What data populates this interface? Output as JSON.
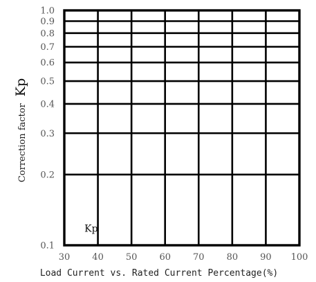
{
  "chart_data": {
    "type": "line",
    "title": "",
    "xlabel": "Load Current vs. Rated Current Percentage(%)",
    "ylabel_prefix": "Correction factor",
    "ylabel_symbol": "Kp",
    "xlim": [
      30,
      100
    ],
    "ylim": [
      0.1,
      1.0
    ],
    "yscale": "log",
    "grid": true,
    "xticks": [
      30,
      40,
      50,
      60,
      70,
      80,
      90,
      100
    ],
    "yticks": [
      0.1,
      0.2,
      0.3,
      0.4,
      0.5,
      0.6,
      0.7,
      0.8,
      0.9,
      1.0
    ],
    "xtick_labels": [
      "30",
      "40",
      "50",
      "60",
      "70",
      "80",
      "90",
      "100"
    ],
    "ytick_labels": [
      "0.1",
      "0.2",
      "0.3",
      "0.4",
      "0.5",
      "0.6",
      "0.7",
      "0.8",
      "0.9",
      "1.0"
    ],
    "annotations": [
      {
        "text": "Kp",
        "x": 36,
        "y": 0.118
      }
    ],
    "series": []
  }
}
